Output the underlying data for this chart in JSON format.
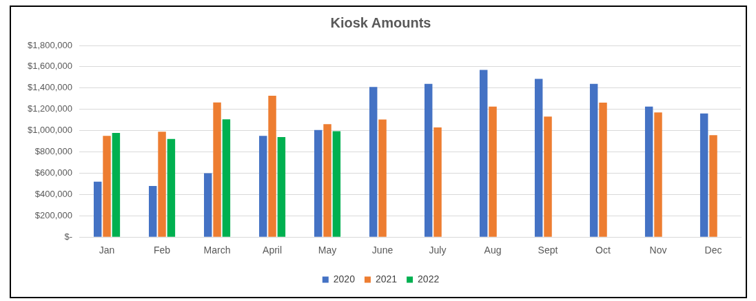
{
  "chart_data": {
    "type": "bar",
    "title": "Kiosk Amounts",
    "categories": [
      "Jan",
      "Feb",
      "March",
      "April",
      "May",
      "June",
      "July",
      "Aug",
      "Sept",
      "Oct",
      "Nov",
      "Dec"
    ],
    "series": [
      {
        "name": "2020",
        "color": "#4472c4",
        "values": [
          520000,
          480000,
          600000,
          950000,
          1005000,
          1410000,
          1440000,
          1570000,
          1487000,
          1440000,
          1225000,
          1161000
        ]
      },
      {
        "name": "2021",
        "color": "#ed7d31",
        "values": [
          950000,
          990000,
          1264000,
          1328000,
          1060000,
          1105000,
          1030000,
          1225000,
          1132000,
          1263000,
          1170000,
          958000
        ]
      },
      {
        "name": "2022",
        "color": "#00b050",
        "values": [
          978000,
          922000,
          1106000,
          940000,
          995000,
          null,
          null,
          null,
          null,
          null,
          null,
          null
        ]
      }
    ],
    "ylim": [
      0,
      1800000
    ],
    "yticks": [
      {
        "value": 0,
        "label": "$-"
      },
      {
        "value": 200000,
        "label": "$200,000"
      },
      {
        "value": 400000,
        "label": "$400,000"
      },
      {
        "value": 600000,
        "label": "$600,000"
      },
      {
        "value": 800000,
        "label": "$800,000"
      },
      {
        "value": 1000000,
        "label": "$1,000,000"
      },
      {
        "value": 1200000,
        "label": "$1,200,000"
      },
      {
        "value": 1400000,
        "label": "$1,400,000"
      },
      {
        "value": 1600000,
        "label": "$1,600,000"
      },
      {
        "value": 1800000,
        "label": "$1,800,000"
      }
    ],
    "grid": "y",
    "legend": "bottom"
  }
}
